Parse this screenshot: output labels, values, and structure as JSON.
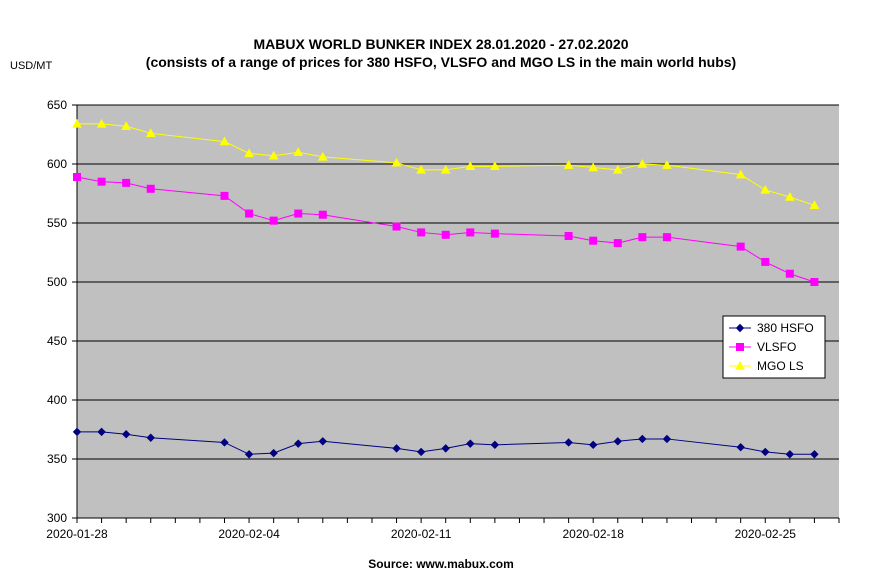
{
  "chart_data": {
    "type": "line",
    "title": "MABUX WORLD BUNKER INDEX 28.01.2020 - 27.02.2020",
    "subtitle": "(consists of a range of prices for 380 HSFO, VLSFO and MGO LS in the main world hubs)",
    "ylabel": "USD/MT",
    "source": "Source: www.mabux.com",
    "ylim": [
      300,
      650
    ],
    "yticks": [
      300,
      350,
      400,
      450,
      500,
      550,
      600,
      650
    ],
    "xlim": [
      "2020-01-28",
      "2020-02-28"
    ],
    "xticks": [
      "2020-01-28",
      "2020-02-04",
      "2020-02-11",
      "2020-02-18",
      "2020-02-25"
    ],
    "x": [
      "2020-01-28",
      "2020-01-29",
      "2020-01-30",
      "2020-01-31",
      "2020-02-03",
      "2020-02-04",
      "2020-02-05",
      "2020-02-06",
      "2020-02-07",
      "2020-02-10",
      "2020-02-11",
      "2020-02-12",
      "2020-02-13",
      "2020-02-14",
      "2020-02-17",
      "2020-02-18",
      "2020-02-19",
      "2020-02-20",
      "2020-02-21",
      "2020-02-24",
      "2020-02-25",
      "2020-02-26",
      "2020-02-27"
    ],
    "grid": true,
    "legend_position": "right",
    "background": "#c0c0c0",
    "series": [
      {
        "name": "380 HSFO",
        "color": "#000080",
        "marker": "diamond",
        "values": [
          373,
          373,
          371,
          368,
          364,
          354,
          355,
          363,
          365,
          359,
          356,
          359,
          363,
          362,
          364,
          362,
          365,
          367,
          367,
          360,
          356,
          354,
          354
        ]
      },
      {
        "name": "VLSFO",
        "color": "#ff00ff",
        "marker": "square",
        "values": [
          589,
          585,
          584,
          579,
          573,
          558,
          552,
          558,
          557,
          547,
          542,
          540,
          542,
          541,
          539,
          535,
          533,
          538,
          538,
          530,
          517,
          507,
          500
        ]
      },
      {
        "name": "MGO LS",
        "color": "#ffff00",
        "marker": "triangle",
        "values": [
          634,
          634,
          632,
          626,
          619,
          609,
          607,
          610,
          606,
          601,
          595,
          595,
          598,
          598,
          599,
          597,
          595,
          600,
          599,
          591,
          578,
          572,
          565
        ]
      }
    ]
  }
}
